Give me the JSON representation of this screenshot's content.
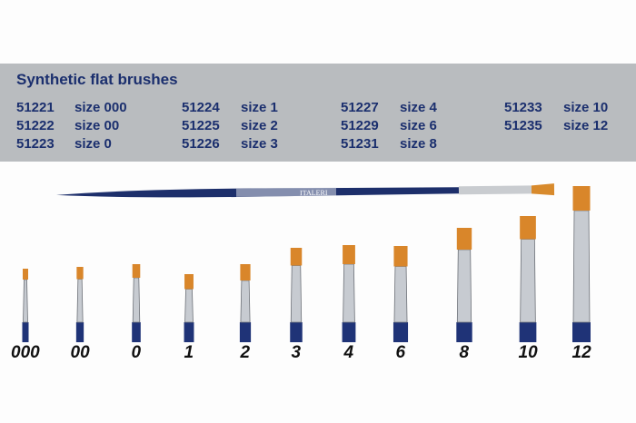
{
  "header": {
    "title": "Synthetic flat brushes"
  },
  "products": [
    {
      "code": "51221",
      "size": "size 000"
    },
    {
      "code": "51222",
      "size": "size 00"
    },
    {
      "code": "51223",
      "size": "size 0"
    },
    {
      "code": "51224",
      "size": "size 1"
    },
    {
      "code": "51225",
      "size": "size 2"
    },
    {
      "code": "51226",
      "size": "size 3"
    },
    {
      "code": "51227",
      "size": "size 4"
    },
    {
      "code": "51229",
      "size": "size 6"
    },
    {
      "code": "51231",
      "size": "size 8"
    },
    {
      "code": "51233",
      "size": "size 10"
    },
    {
      "code": "51235",
      "size": "size 12"
    }
  ],
  "brush_label": "ITALERI",
  "size_labels": [
    "000",
    "00",
    "0",
    "1",
    "2",
    "3",
    "4",
    "6",
    "8",
    "10",
    "12"
  ]
}
